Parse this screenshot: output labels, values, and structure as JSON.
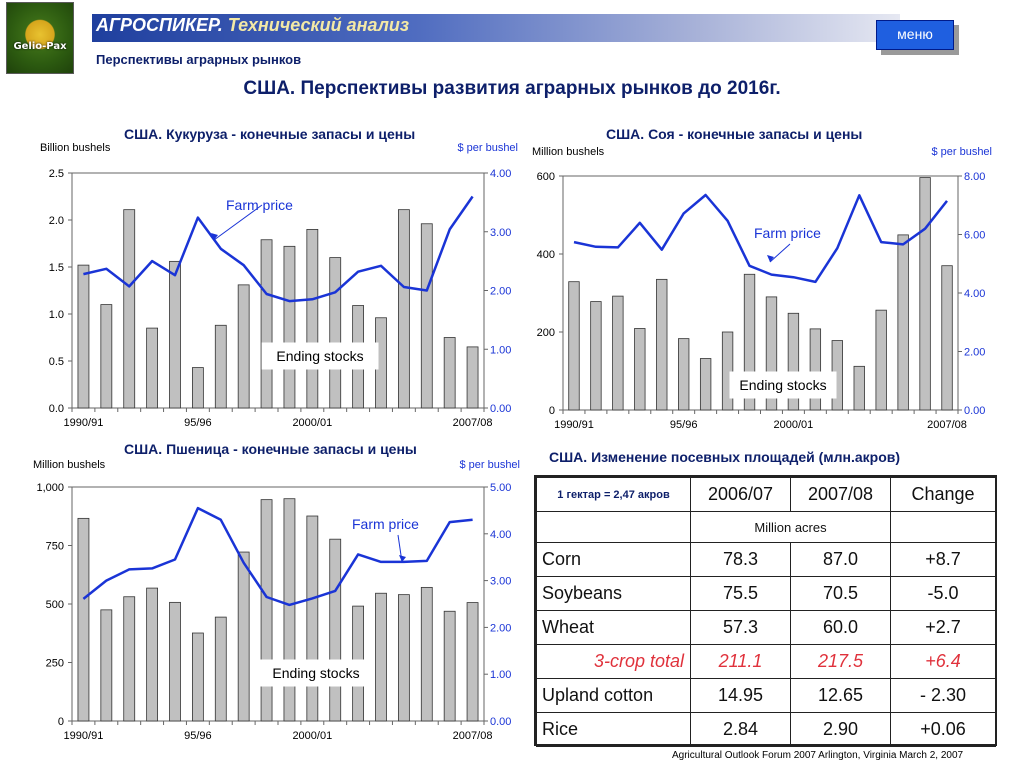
{
  "header": {
    "logo_text": "Gelio-Pax",
    "title_part1": "АГРОСПИКЕР.",
    "title_part2": "Технический анализ",
    "menu_label": "меню",
    "subtitle": "Перспективы аграрных рынков",
    "main_title": "США. Перспективы развития аграрных рынков до 2016г."
  },
  "colors": {
    "bar_fill": "#c0c0c0",
    "price_line": "#1a34d6",
    "title_text": "#0d1f6a",
    "total_row": "#e0323c",
    "menu_button": "#1f5fe0"
  },
  "chart_data": [
    {
      "type": "bar+line",
      "title": "США. Кукуруза - конечные запасы и цены",
      "left_axis_label": "Billion bushels",
      "right_axis_label": "$ per bushel",
      "left_ticks": [
        "0.0",
        "0.5",
        "1.0",
        "1.5",
        "2.0",
        "2.5"
      ],
      "left_range": [
        0,
        2.5
      ],
      "right_ticks": [
        "0.00",
        "1.00",
        "2.00",
        "3.00",
        "4.00"
      ],
      "right_range": [
        0,
        4
      ],
      "x_labels": [
        "1990/91",
        "95/96",
        "2000/01",
        "2007/08"
      ],
      "x_label_at": [
        0,
        5,
        10,
        17
      ],
      "bar_series_label": "Ending stocks",
      "line_series_label": "Farm price",
      "stocks": [
        1.52,
        1.1,
        2.11,
        0.85,
        1.56,
        0.43,
        0.88,
        1.31,
        1.79,
        1.72,
        1.9,
        1.6,
        1.09,
        0.96,
        2.11,
        1.96,
        0.75,
        0.65
      ],
      "price": [
        2.28,
        2.37,
        2.07,
        2.5,
        2.26,
        3.24,
        2.71,
        2.43,
        1.94,
        1.82,
        1.85,
        1.97,
        2.32,
        2.42,
        2.06,
        2.0,
        3.04,
        3.6
      ]
    },
    {
      "type": "bar+line",
      "title": "США. Соя - конечные запасы и цены",
      "left_axis_label": "Million bushels",
      "right_axis_label": "$ per bushel",
      "left_ticks": [
        "0",
        "200",
        "400",
        "600"
      ],
      "left_range": [
        0,
        600
      ],
      "right_ticks": [
        "0.00",
        "2.00",
        "4.00",
        "6.00",
        "8.00"
      ],
      "right_range": [
        0,
        8
      ],
      "x_labels": [
        "1990/91",
        "95/96",
        "2000/01",
        "2007/08"
      ],
      "x_label_at": [
        0,
        5,
        10,
        17
      ],
      "bar_series_label": "Ending stocks",
      "line_series_label": "Farm price",
      "stocks": [
        329,
        278,
        292,
        209,
        335,
        183,
        132,
        200,
        348,
        290,
        248,
        208,
        178,
        112,
        256,
        449,
        596,
        370
      ],
      "price": [
        5.74,
        5.58,
        5.56,
        6.4,
        5.48,
        6.72,
        7.35,
        6.47,
        4.93,
        4.63,
        4.54,
        4.38,
        5.53,
        7.34,
        5.74,
        5.66,
        6.2,
        7.15
      ]
    },
    {
      "type": "bar+line",
      "title": "США. Пшеница - конечные запасы и цены",
      "left_axis_label": "Million bushels",
      "right_axis_label": "$ per bushel",
      "left_ticks": [
        "0",
        "250",
        "500",
        "750",
        "1,000"
      ],
      "left_range": [
        0,
        1000
      ],
      "right_ticks": [
        "0.00",
        "1.00",
        "2.00",
        "3.00",
        "4.00",
        "5.00"
      ],
      "right_range": [
        0,
        5
      ],
      "x_labels": [
        "1990/91",
        "95/96",
        "2000/01",
        "2007/08"
      ],
      "x_label_at": [
        0,
        5,
        10,
        17
      ],
      "bar_series_label": "Ending stocks",
      "line_series_label": "Farm price",
      "stocks": [
        866,
        475,
        531,
        568,
        507,
        376,
        444,
        722,
        946,
        950,
        876,
        777,
        491,
        546,
        540,
        571,
        469,
        506
      ],
      "price": [
        2.61,
        3.0,
        3.24,
        3.26,
        3.45,
        4.55,
        4.3,
        3.38,
        2.65,
        2.48,
        2.62,
        2.78,
        3.56,
        3.4,
        3.4,
        3.42,
        4.25,
        4.3
      ]
    }
  ],
  "table": {
    "title": "США. Изменение посевных площадей (млн.акров)",
    "note": "1 гектар = 2,47 акров",
    "headers": [
      "2006/07",
      "2007/08",
      "Change"
    ],
    "units": "Million acres",
    "rows": [
      {
        "crop": "Corn",
        "v1": "78.3",
        "v2": "87.0",
        "chg": "+8.7"
      },
      {
        "crop": "Soybeans",
        "v1": "75.5",
        "v2": "70.5",
        "chg": "-5.0"
      },
      {
        "crop": "Wheat",
        "v1": "57.3",
        "v2": "60.0",
        "chg": "+2.7"
      },
      {
        "crop": "3-crop total",
        "v1": "211.1",
        "v2": "217.5",
        "chg": "+6.4"
      },
      {
        "crop": "Upland cotton",
        "v1": "14.95",
        "v2": "12.65",
        "chg": "- 2.30"
      },
      {
        "crop": "Rice",
        "v1": "2.84",
        "v2": "2.90",
        "chg": "+0.06"
      }
    ]
  },
  "footer": "Agricultural Outlook Forum 2007  Arlington, Virginia   March 2, 2007"
}
